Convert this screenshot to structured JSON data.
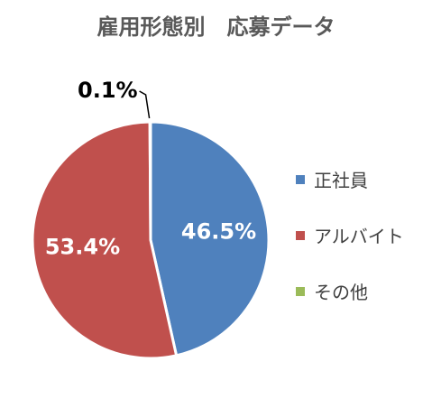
{
  "chart_data": {
    "type": "pie",
    "title": "雇用形態別　応募データ",
    "slices": [
      {
        "name": "正社員",
        "value": 46.5,
        "label": "46.5%",
        "color": "#4F81BD"
      },
      {
        "name": "アルバイト",
        "value": 53.4,
        "label": "53.4%",
        "color": "#C0504D"
      },
      {
        "name": "その他",
        "value": 0.1,
        "label": "0.1%",
        "color": "#9BBB59"
      }
    ],
    "legend_position": "right"
  }
}
